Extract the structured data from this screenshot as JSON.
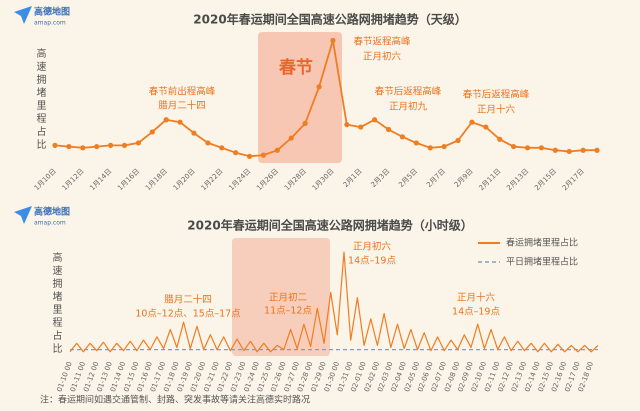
{
  "logo": {
    "name": "高德地图",
    "url": "amap.com"
  },
  "footnote": "注：春运期间如遇交通管制、封路、突发事故等请关注高德实时路况",
  "chart_data": [
    {
      "type": "line",
      "title": "2020年春运期间全国高速公路网拥堵趋势（天级）",
      "y_label": "高速拥堵里程占比",
      "highlight_label": "春节",
      "color": "#ef7d22",
      "ylim": [
        0,
        100
      ],
      "categories": [
        "1月10日",
        null,
        "1月12日",
        null,
        "1月14日",
        null,
        "1月16日",
        null,
        "1月18日",
        null,
        "1月20日",
        null,
        "1月22日",
        null,
        "1月24日",
        null,
        "1月26日",
        null,
        "1月28日",
        null,
        "1月30日",
        null,
        "2月1日",
        null,
        "2月3日",
        null,
        "2月5日",
        null,
        "2月7日",
        null,
        "2月9日",
        null,
        "2月11日",
        null,
        "2月13日",
        null,
        "2月15日",
        null,
        "2月17日",
        null
      ],
      "values": [
        12,
        11,
        10,
        11,
        12,
        12,
        14,
        23,
        33,
        31,
        22,
        14,
        10,
        6,
        3,
        4,
        8,
        18,
        30,
        60,
        98,
        29,
        27,
        33,
        25,
        19,
        14,
        10,
        11,
        16,
        31,
        27,
        17,
        11,
        10,
        10,
        8,
        7,
        8,
        8
      ],
      "annotations": [
        [
          "春节前出程高峰",
          "腊月二十四"
        ],
        [
          "春节返程高峰",
          "正月初六"
        ],
        [
          "春节后返程高峰",
          "正月初九"
        ],
        [
          "春节后返程高峰",
          "正月十六"
        ]
      ]
    },
    {
      "type": "line",
      "title": "2020年春运期间全国高速公路网拥堵趋势（小时级）",
      "y_label": "高速拥堵里程占比",
      "ylim": [
        0,
        100
      ],
      "categories": [
        "01-10 00",
        null,
        "01-11 00",
        null,
        "01-12 00",
        null,
        "01-13 00",
        null,
        "01-14 00",
        null,
        "01-15 00",
        null,
        "01-16 00",
        null,
        "01-17 00",
        null,
        "01-18 00",
        null,
        "01-19 00",
        null,
        "01-20 00",
        null,
        "01-21 00",
        null,
        "01-22 00",
        null,
        "01-23 00",
        null,
        "01-24 00",
        null,
        "01-25 00",
        null,
        "01-26 00",
        null,
        "01-27 00",
        null,
        "01-28 00",
        null,
        "01-29 00",
        null,
        "01-30 00",
        null,
        "01-31 00",
        null,
        "02-01 00",
        null,
        "02-02 00",
        null,
        "02-03 00",
        null,
        "02-04 00",
        null,
        "02-05 00",
        null,
        "02-06 00",
        null,
        "02-07 00",
        null,
        "02-08 00",
        null,
        "02-09 00",
        null,
        "02-10 00",
        null,
        "02-11 00",
        null,
        "02-12 00",
        null,
        "02-13 00",
        null,
        "02-14 00",
        null,
        "02-15 00",
        null,
        "02-16 00",
        null,
        "02-17 00",
        null,
        "02-18 00",
        null
      ],
      "series": [
        {
          "name": "春运拥堵里程占比",
          "color": "#ef7d22",
          "values": [
            4,
            12,
            4,
            12,
            5,
            13,
            4,
            12,
            5,
            14,
            5,
            15,
            6,
            18,
            7,
            25,
            8,
            32,
            7,
            28,
            6,
            20,
            6,
            18,
            5,
            16,
            5,
            14,
            4,
            12,
            4,
            10,
            6,
            25,
            7,
            30,
            9,
            45,
            12,
            60,
            20,
            98,
            15,
            55,
            10,
            35,
            10,
            40,
            8,
            30,
            7,
            25,
            6,
            22,
            5,
            18,
            5,
            15,
            6,
            20,
            8,
            30,
            7,
            25,
            6,
            18,
            5,
            14,
            5,
            12,
            4,
            12,
            4,
            11,
            4,
            10,
            4,
            10,
            4,
            10
          ]
        }
      ],
      "reference_line": {
        "name": "平日拥堵里程占比",
        "color": "#8a9bb8",
        "value": 6
      },
      "annotations": [
        [
          "腊月二十四",
          "10点–12点、15点–17点"
        ],
        [
          "正月初二",
          "11点–12点"
        ],
        [
          "正月初六",
          "14点–19点"
        ],
        [
          "正月十六",
          "14点–19点"
        ]
      ]
    }
  ]
}
